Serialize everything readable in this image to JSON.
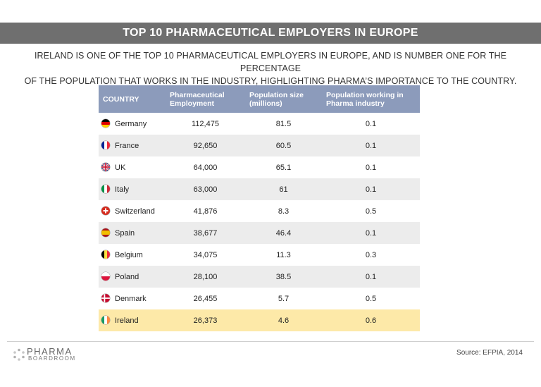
{
  "header": {
    "title": "TOP 10 PHARMACEUTICAL EMPLOYERS IN EUROPE",
    "subtitle_line1": "IRELAND IS ONE OF THE TOP 10 PHARMACEUTICAL EMPLOYERS IN EUROPE, AND IS NUMBER ONE FOR THE PERCENTAGE",
    "subtitle_line2": "OF THE POPULATION THAT WORKS IN THE INDUSTRY, HIGHLIGHTING PHARMA’S IMPORTANCE TO THE COUNTRY."
  },
  "chart_data": {
    "type": "table",
    "columns": [
      "COUNTRY",
      "Pharmaceutical Employment",
      "Population size (millions)",
      "Population working in Pharma industry"
    ],
    "rows": [
      {
        "country": "Germany",
        "employment": "112,475",
        "population": "81.5",
        "pct": "0.1",
        "flag": "germany-flag-icon"
      },
      {
        "country": "France",
        "employment": "92,650",
        "population": "60.5",
        "pct": "0.1",
        "flag": "france-flag-icon"
      },
      {
        "country": "UK",
        "employment": "64,000",
        "population": "65.1",
        "pct": "0.1",
        "flag": "uk-flag-icon"
      },
      {
        "country": "Italy",
        "employment": "63,000",
        "population": "61",
        "pct": "0.1",
        "flag": "italy-flag-icon"
      },
      {
        "country": "Switzerland",
        "employment": "41,876",
        "population": "8.3",
        "pct": "0.5",
        "flag": "switzerland-flag-icon"
      },
      {
        "country": "Spain",
        "employment": "38,677",
        "population": "46.4",
        "pct": "0.1",
        "flag": "spain-flag-icon"
      },
      {
        "country": "Belgium",
        "employment": "34,075",
        "population": "11.3",
        "pct": "0.3",
        "flag": "belgium-flag-icon"
      },
      {
        "country": "Poland",
        "employment": "28,100",
        "population": "38.5",
        "pct": "0.1",
        "flag": "poland-flag-icon"
      },
      {
        "country": "Denmark",
        "employment": "26,455",
        "population": "5.7",
        "pct": "0.5",
        "flag": "denmark-flag-icon"
      },
      {
        "country": "Ireland",
        "employment": "26,373",
        "population": "4.6",
        "pct": "0.6",
        "flag": "ireland-flag-icon",
        "highlighted": true
      }
    ]
  },
  "colors": {
    "title_bar": "#6f6f6f",
    "table_header": "#8c9bbb",
    "row_alt": "#ececec",
    "row_highlight": "#fde9a8"
  },
  "footer": {
    "logo_top": "PHARMA",
    "logo_bottom": "BOARDROOM",
    "source": "Source: EFPIA, 2014"
  }
}
